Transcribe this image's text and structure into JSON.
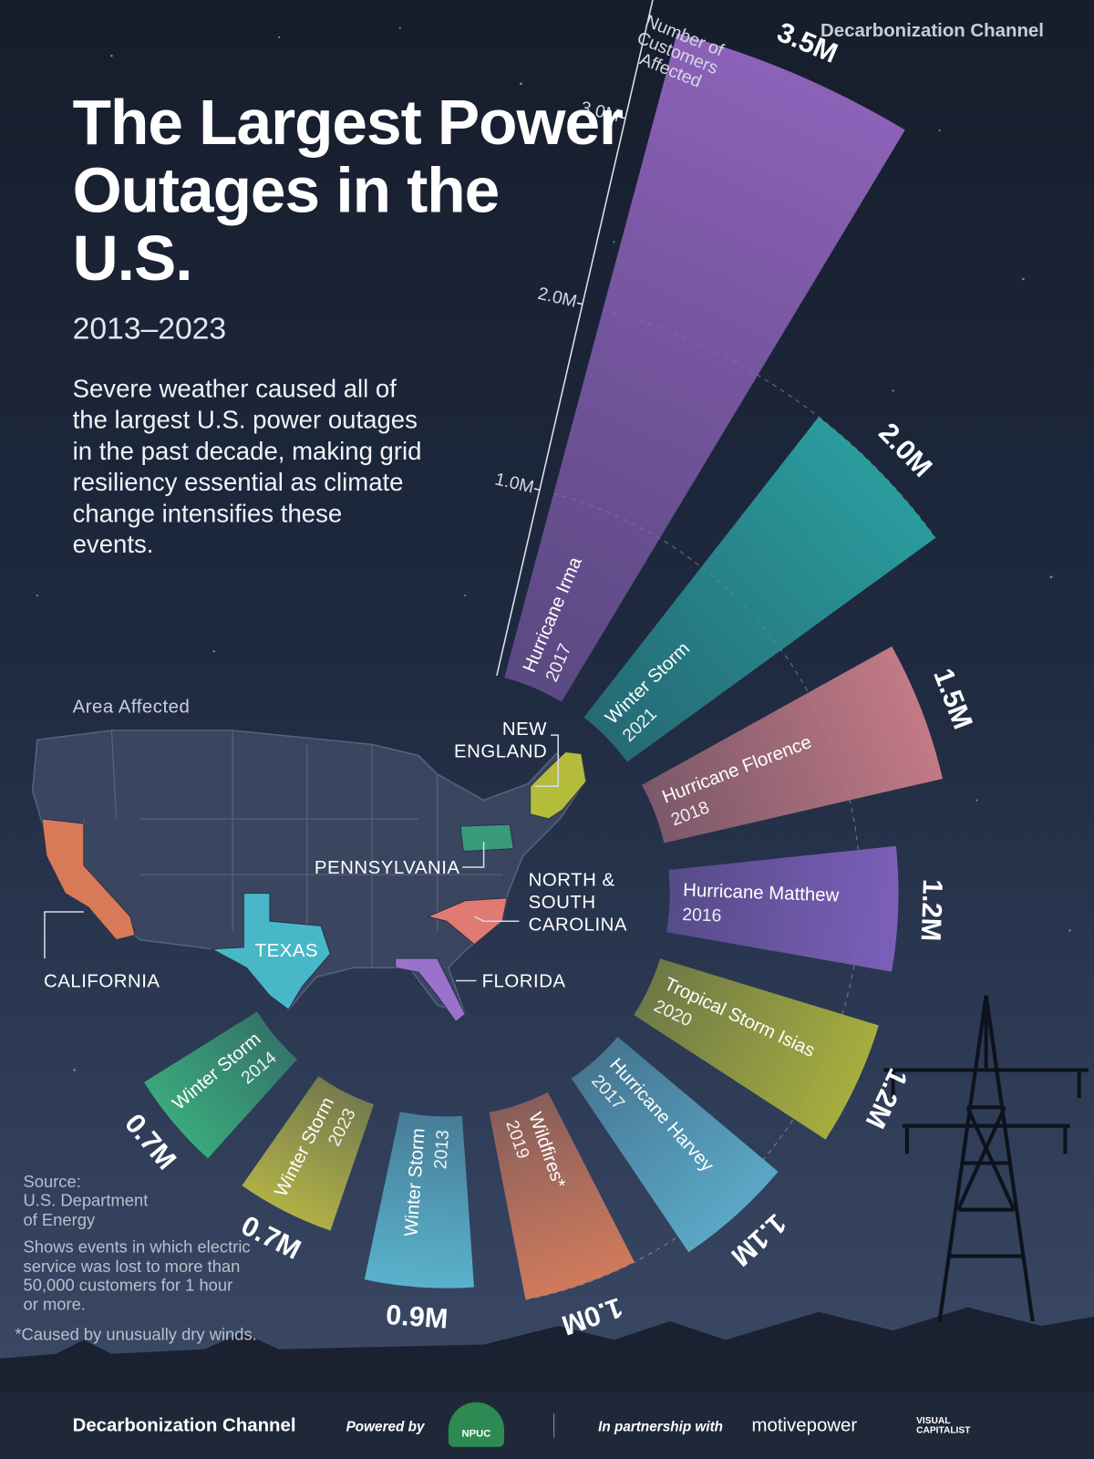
{
  "header": {
    "brand": "Decarbonization Channel",
    "title": "The Largest Power Outages in the U.S.",
    "subtitle": "2013–2023",
    "description": "Severe weather caused all of the largest U.S. power outages in the past decade, making grid resiliency essential as climate change intensifies these events."
  },
  "chart_data": {
    "type": "radial",
    "axis_label": "Number of Customers Affected",
    "categories": [
      "Hurricane Irma",
      "Winter Storm",
      "Hurricane Florence",
      "Hurricane Matthew",
      "Tropical Storm Isias",
      "Hurricane Harvey",
      "Wildfires*",
      "Winter Storm",
      "Winter Storm",
      "Winter Storm"
    ],
    "years": [
      "2017",
      "2021",
      "2018",
      "2016",
      "2020",
      "2017",
      "2019",
      "2013",
      "2023",
      "2014"
    ],
    "values": [
      3.5,
      2.0,
      1.5,
      1.2,
      1.2,
      1.1,
      1.0,
      0.9,
      0.7,
      0.7
    ],
    "value_labels": [
      "3.5M",
      "2.0M",
      "1.5M",
      "1.2M",
      "1.2M",
      "1.1M",
      "1.0M",
      "0.9M",
      "0.7M",
      "0.7M"
    ],
    "colors": [
      "#8c62b8",
      "#2a9c9e",
      "#c37a86",
      "#7c5fba",
      "#a6ae3e",
      "#5aa8c6",
      "#d07a5c",
      "#5ab2cc",
      "#b0b046",
      "#3aa87c"
    ],
    "ylim": [
      0,
      3.5
    ],
    "yticks": [
      {
        "value": 1,
        "label": "1.0M"
      },
      {
        "value": 2,
        "label": "2.0M"
      },
      {
        "value": 3,
        "label": "3.0M"
      }
    ],
    "grid": true
  },
  "map": {
    "label": "Area Affected",
    "regions": [
      {
        "name": "NEW ENGLAND",
        "color": "#b4bc3a"
      },
      {
        "name": "PENNSYLVANIA",
        "color": "#3a9a7c"
      },
      {
        "name": "NORTH & SOUTH CAROLINA",
        "color": "#e07a72"
      },
      {
        "name": "TEXAS",
        "color": "#48b8c8"
      },
      {
        "name": "CALIFORNIA",
        "color": "#d87a58"
      },
      {
        "name": "FLORIDA",
        "color": "#9a72cc"
      }
    ]
  },
  "notes": {
    "source_label": "Source:",
    "source": "U.S. Department of Energy",
    "note": "Shows events in which electric service was lost to more than 50,000 customers for 1 hour or more.",
    "footnote": "*Caused by unusually dry winds."
  },
  "footer": {
    "brand": "Decarbonization Channel",
    "powered_by": "Powered by",
    "npuc": "NPUC",
    "partnership": "In partnership with",
    "motivepower": "motivepower",
    "visual_capitalist": "VISUAL CAPITALIST"
  }
}
